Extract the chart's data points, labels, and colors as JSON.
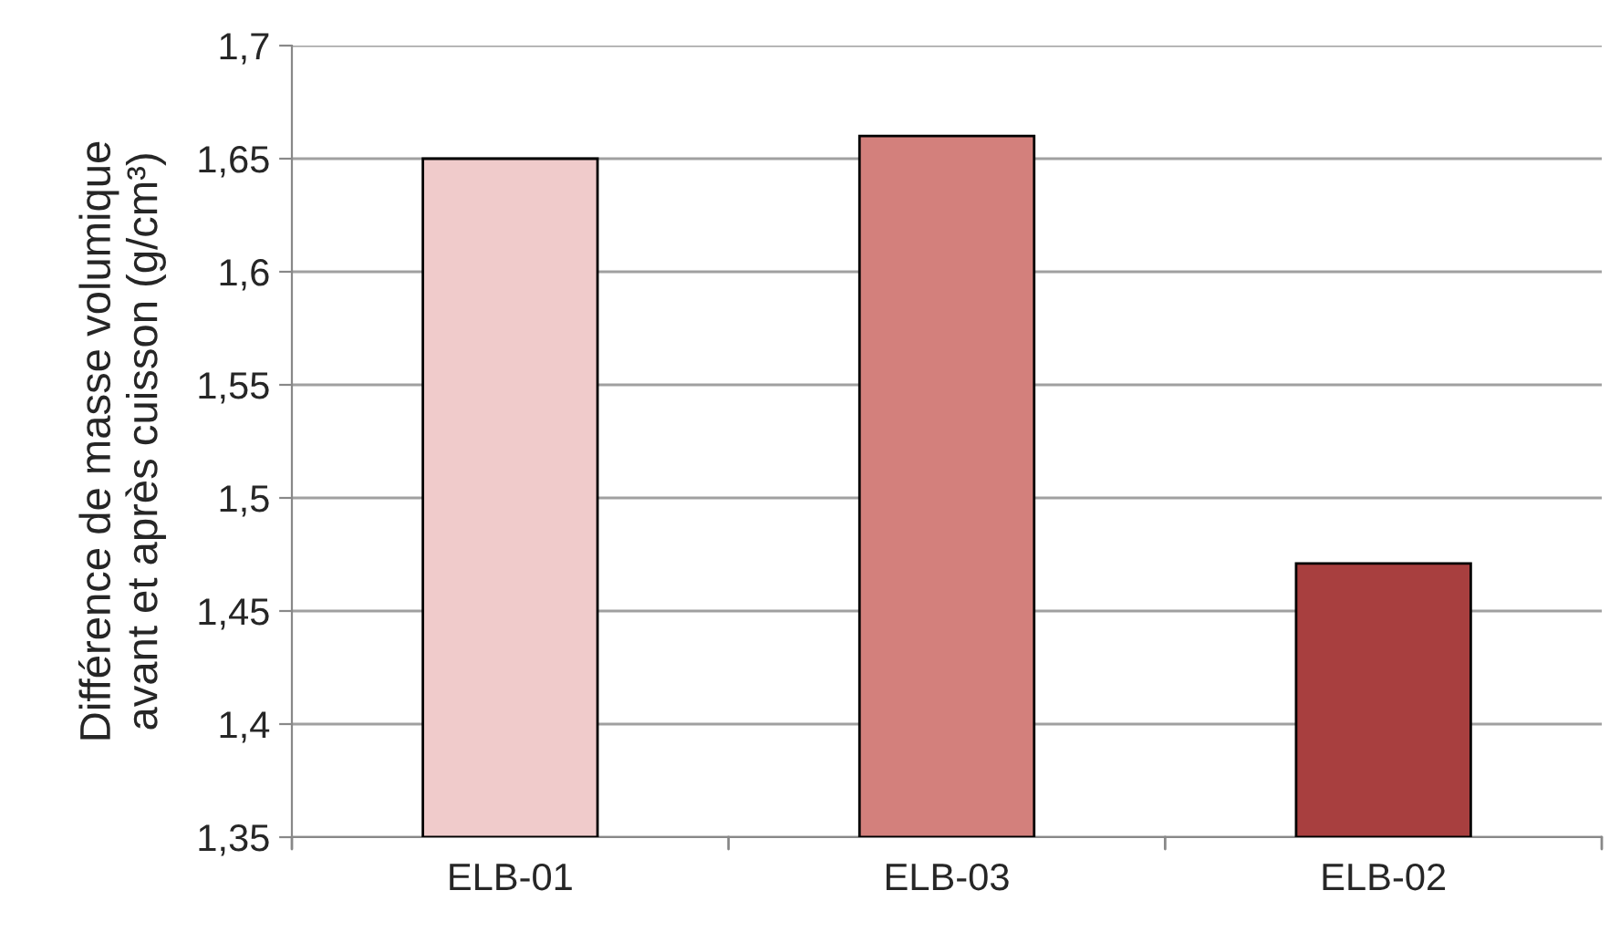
{
  "chart_data": {
    "type": "bar",
    "ylabel": "Différence de masse volumique\navant et après cuisson (g/cm³)",
    "categories": [
      "ELB-01",
      "ELB-03",
      "ELB-02"
    ],
    "values": [
      1.65,
      1.66,
      1.471
    ],
    "colors": [
      "#f0cbcb",
      "#d3807c",
      "#a83f3f"
    ],
    "ylim": [
      1.35,
      1.7
    ],
    "yticks": [
      {
        "value": 1.35,
        "label": "1,35"
      },
      {
        "value": 1.4,
        "label": "1,4"
      },
      {
        "value": 1.45,
        "label": "1,45"
      },
      {
        "value": 1.5,
        "label": "1,5"
      },
      {
        "value": 1.55,
        "label": "1,55"
      },
      {
        "value": 1.6,
        "label": "1,6"
      },
      {
        "value": 1.65,
        "label": "1,65"
      },
      {
        "value": 1.7,
        "label": "1,7"
      }
    ],
    "grid": "y"
  }
}
